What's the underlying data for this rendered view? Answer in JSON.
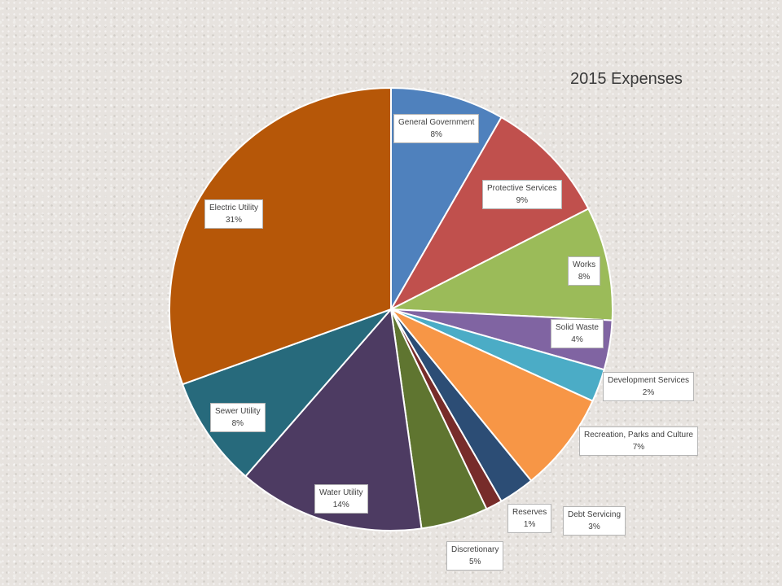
{
  "chart_data": {
    "type": "pie",
    "title": "2015 Expenses",
    "slices": [
      {
        "name": "General Government",
        "percent_label": "8%",
        "value": 8.3,
        "color": "#4f81bd"
      },
      {
        "name": "Protective Services",
        "percent_label": "9%",
        "value": 9.2,
        "color": "#c0504d"
      },
      {
        "name": "Works",
        "percent_label": "8%",
        "value": 8.3,
        "color": "#9bbb59"
      },
      {
        "name": "Solid Waste",
        "percent_label": "4%",
        "value": 3.6,
        "color": "#8064a2"
      },
      {
        "name": "Development Services",
        "percent_label": "2%",
        "value": 2.4,
        "color": "#4bacc6"
      },
      {
        "name": "Recreation, Parks and Culture",
        "percent_label": "7%",
        "value": 7.3,
        "color": "#f79646"
      },
      {
        "name": "Debt Servicing",
        "percent_label": "3%",
        "value": 2.6,
        "color": "#2c4d75"
      },
      {
        "name": "Reserves",
        "percent_label": "1%",
        "value": 1.2,
        "color": "#772c2a"
      },
      {
        "name": "Discretionary",
        "percent_label": "5%",
        "value": 4.9,
        "color": "#5f7530"
      },
      {
        "name": "Water Utility",
        "percent_label": "14%",
        "value": 13.6,
        "color": "#4d3b62"
      },
      {
        "name": "Sewer Utility",
        "percent_label": "8%",
        "value": 8.1,
        "color": "#276a7c"
      },
      {
        "name": "Electric Utility",
        "percent_label": "31%",
        "value": 30.5,
        "color": "#b65708"
      }
    ]
  }
}
